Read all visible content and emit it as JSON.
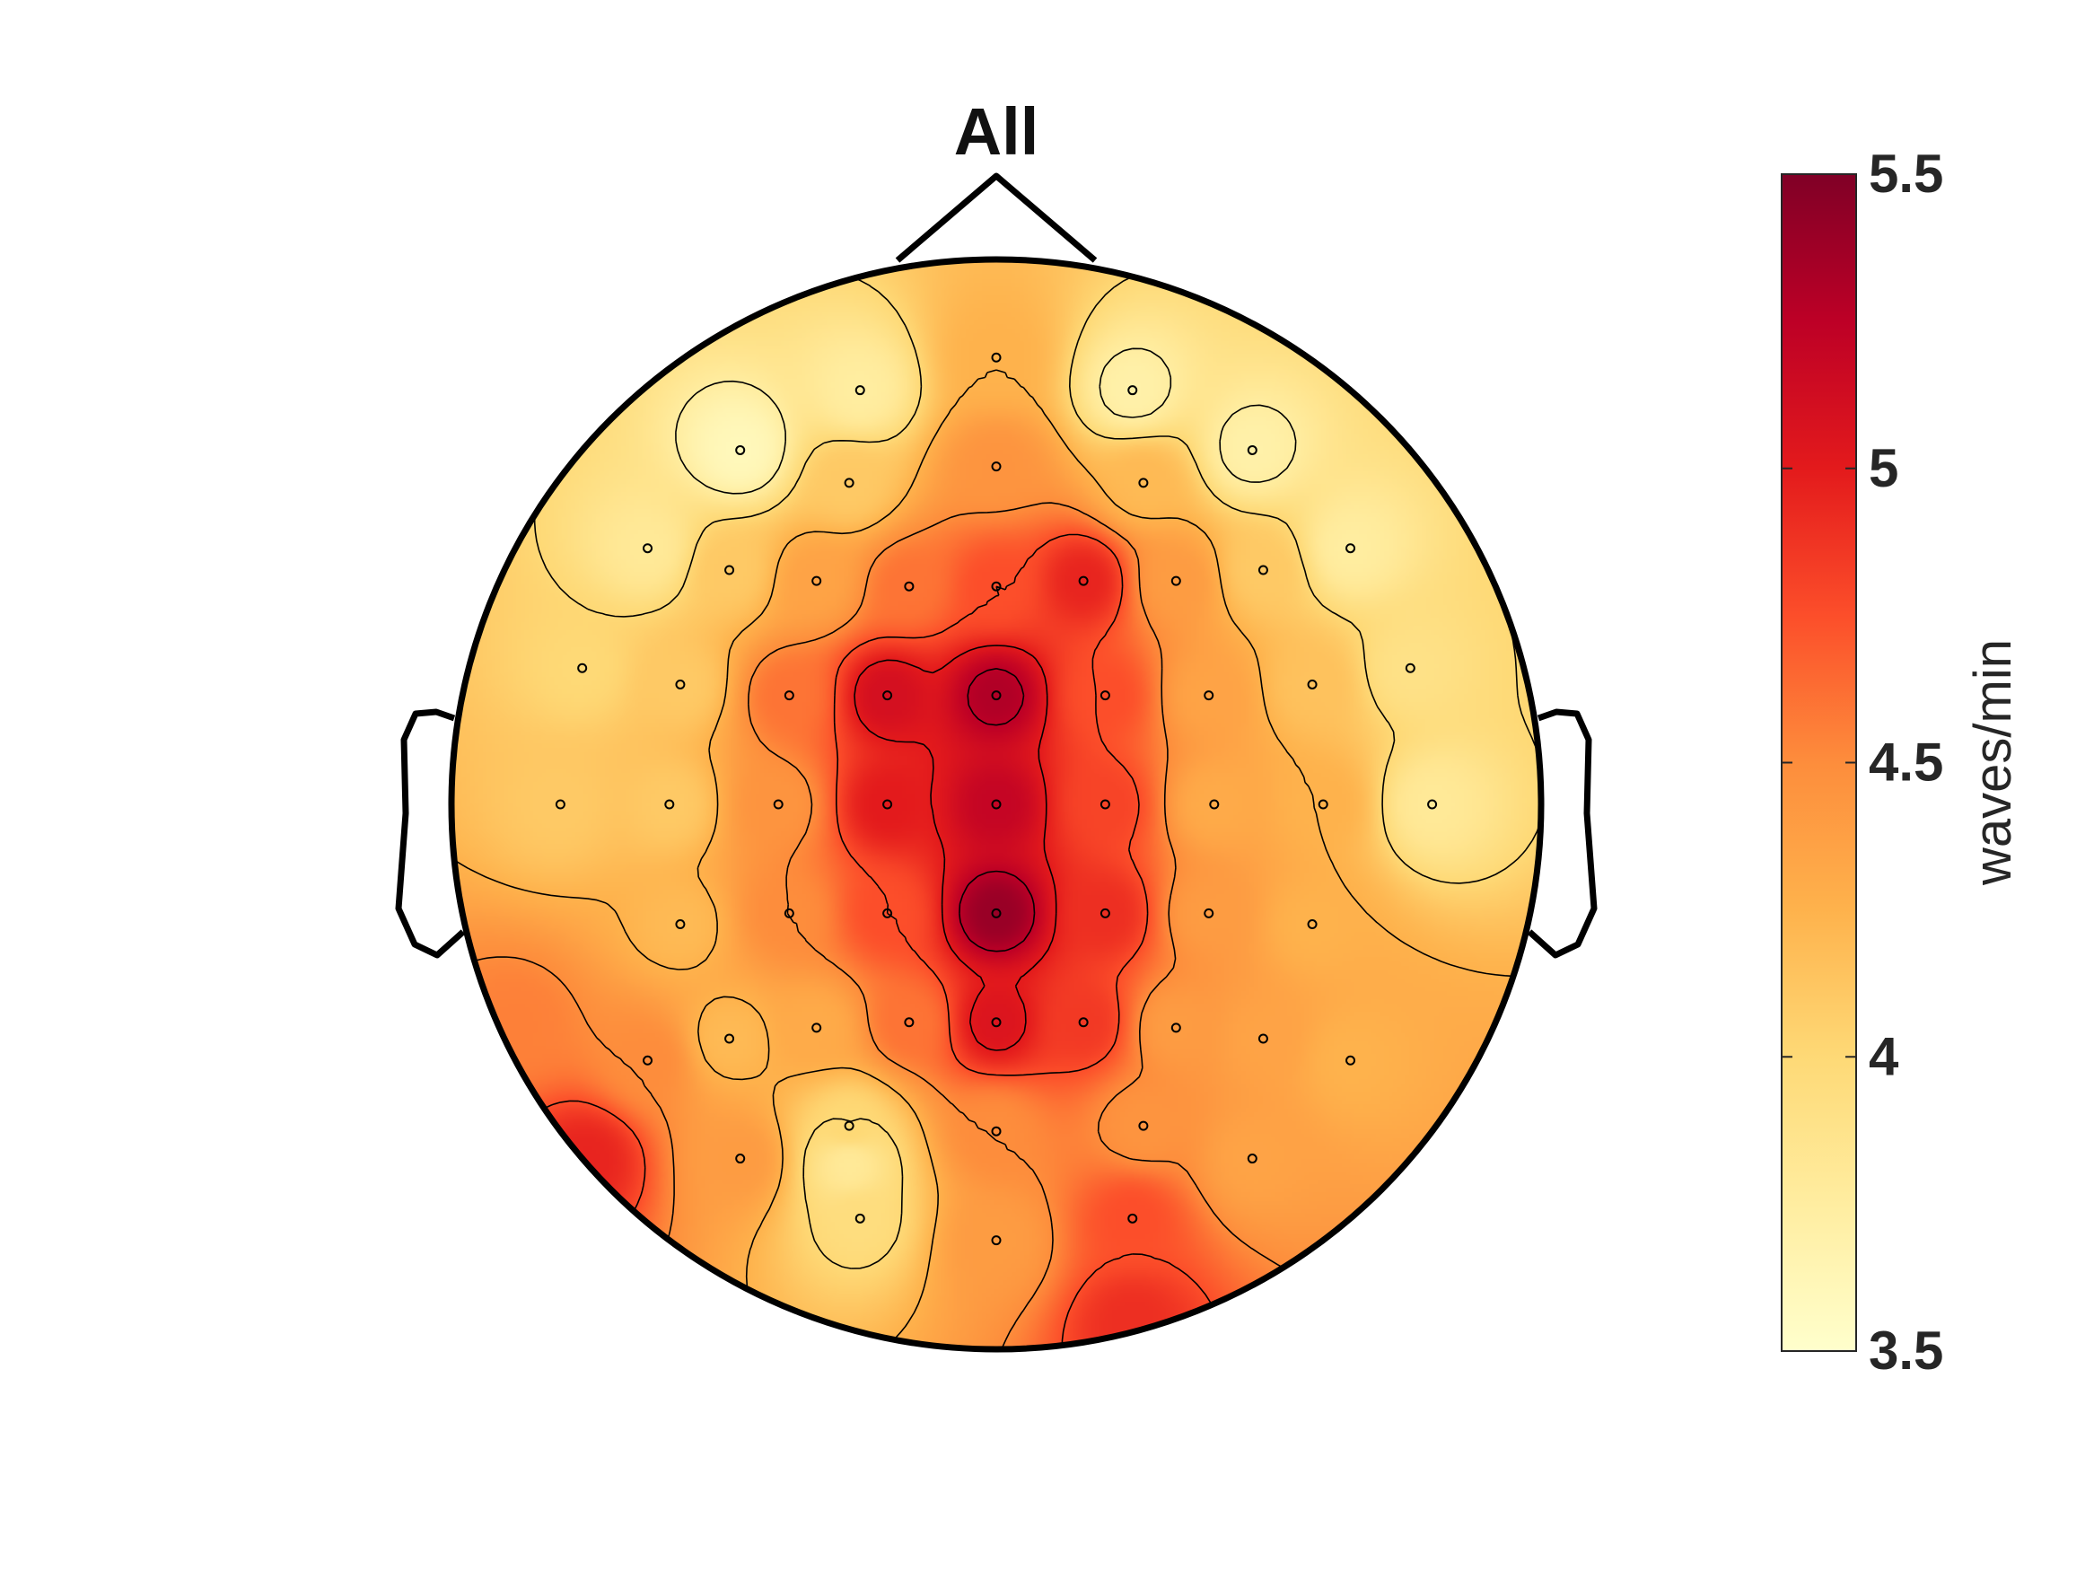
{
  "chart_data": {
    "type": "heatmap",
    "subtype": "eeg-topoplot",
    "title": "All",
    "colorbar": {
      "label": "waves/min",
      "range": [
        3.5,
        5.5
      ],
      "ticks": [
        5.5,
        5,
        4.5,
        4,
        3.5
      ],
      "tick_labels": [
        "5.5",
        "5",
        "4.5",
        "4",
        "3.5"
      ],
      "colormap": [
        "#ffffcc",
        "#ffeda0",
        "#fed976",
        "#feb24c",
        "#fd8d3c",
        "#fc4e2a",
        "#e31a1c",
        "#bd0026",
        "#800026"
      ]
    },
    "contours": true,
    "electrodes": [
      {
        "x": 0.0,
        "y": 0.82,
        "v": 4.25
      },
      {
        "x": -0.25,
        "y": 0.76,
        "v": 3.75
      },
      {
        "x": 0.25,
        "y": 0.76,
        "v": 3.7
      },
      {
        "x": -0.47,
        "y": 0.65,
        "v": 3.6
      },
      {
        "x": 0.47,
        "y": 0.65,
        "v": 3.7
      },
      {
        "x": -0.27,
        "y": 0.59,
        "v": 4.1
      },
      {
        "x": 0.0,
        "y": 0.62,
        "v": 4.45
      },
      {
        "x": 0.27,
        "y": 0.59,
        "v": 4.2
      },
      {
        "x": -0.64,
        "y": 0.47,
        "v": 3.8
      },
      {
        "x": -0.49,
        "y": 0.43,
        "v": 4.1
      },
      {
        "x": -0.33,
        "y": 0.41,
        "v": 4.35
      },
      {
        "x": -0.16,
        "y": 0.4,
        "v": 4.6
      },
      {
        "x": 0.0,
        "y": 0.4,
        "v": 4.75
      },
      {
        "x": 0.16,
        "y": 0.41,
        "v": 4.95
      },
      {
        "x": 0.33,
        "y": 0.41,
        "v": 4.4
      },
      {
        "x": 0.49,
        "y": 0.43,
        "v": 4.1
      },
      {
        "x": 0.65,
        "y": 0.47,
        "v": 3.75
      },
      {
        "x": -0.76,
        "y": 0.25,
        "v": 4.0
      },
      {
        "x": -0.58,
        "y": 0.22,
        "v": 4.1
      },
      {
        "x": -0.38,
        "y": 0.2,
        "v": 4.6
      },
      {
        "x": -0.2,
        "y": 0.2,
        "v": 5.1
      },
      {
        "x": 0.0,
        "y": 0.2,
        "v": 5.3
      },
      {
        "x": 0.2,
        "y": 0.2,
        "v": 4.75
      },
      {
        "x": 0.39,
        "y": 0.2,
        "v": 4.35
      },
      {
        "x": 0.58,
        "y": 0.22,
        "v": 4.15
      },
      {
        "x": 0.76,
        "y": 0.25,
        "v": 3.9
      },
      {
        "x": -0.8,
        "y": 0.0,
        "v": 4.1
      },
      {
        "x": -0.6,
        "y": 0.0,
        "v": 4.1
      },
      {
        "x": -0.4,
        "y": 0.0,
        "v": 4.45
      },
      {
        "x": -0.2,
        "y": 0.0,
        "v": 5.0
      },
      {
        "x": 0.0,
        "y": 0.0,
        "v": 5.2
      },
      {
        "x": 0.2,
        "y": 0.0,
        "v": 4.8
      },
      {
        "x": 0.4,
        "y": 0.0,
        "v": 4.3
      },
      {
        "x": 0.6,
        "y": 0.0,
        "v": 4.25
      },
      {
        "x": 0.8,
        "y": 0.0,
        "v": 3.8
      },
      {
        "x": -0.58,
        "y": -0.22,
        "v": 4.2
      },
      {
        "x": -0.38,
        "y": -0.2,
        "v": 4.5
      },
      {
        "x": -0.2,
        "y": -0.2,
        "v": 4.75
      },
      {
        "x": 0.0,
        "y": -0.2,
        "v": 5.4
      },
      {
        "x": 0.2,
        "y": -0.2,
        "v": 4.9
      },
      {
        "x": 0.39,
        "y": -0.2,
        "v": 4.4
      },
      {
        "x": 0.58,
        "y": -0.22,
        "v": 4.25
      },
      {
        "x": -0.49,
        "y": -0.43,
        "v": 4.2
      },
      {
        "x": -0.33,
        "y": -0.41,
        "v": 4.3
      },
      {
        "x": -0.16,
        "y": -0.4,
        "v": 4.6
      },
      {
        "x": 0.0,
        "y": -0.4,
        "v": 5.05
      },
      {
        "x": 0.16,
        "y": -0.4,
        "v": 4.85
      },
      {
        "x": 0.33,
        "y": -0.41,
        "v": 4.4
      },
      {
        "x": 0.49,
        "y": -0.43,
        "v": 4.35
      },
      {
        "x": -0.64,
        "y": -0.47,
        "v": 4.5
      },
      {
        "x": 0.65,
        "y": -0.47,
        "v": 4.25
      },
      {
        "x": -0.47,
        "y": -0.65,
        "v": 4.4
      },
      {
        "x": -0.27,
        "y": -0.59,
        "v": 4.0
      },
      {
        "x": 0.0,
        "y": -0.6,
        "v": 4.5
      },
      {
        "x": 0.27,
        "y": -0.59,
        "v": 4.45
      },
      {
        "x": 0.47,
        "y": -0.65,
        "v": 4.35
      },
      {
        "x": -0.25,
        "y": -0.76,
        "v": 3.95
      },
      {
        "x": 0.0,
        "y": -0.8,
        "v": 4.4
      },
      {
        "x": 0.25,
        "y": -0.76,
        "v": 4.75
      }
    ],
    "extra_points": [
      {
        "x": -0.75,
        "y": -0.65,
        "v": 4.95
      },
      {
        "x": -0.88,
        "y": -0.4,
        "v": 4.55
      },
      {
        "x": 0.25,
        "y": -0.95,
        "v": 4.9
      },
      {
        "x": -0.27,
        "y": -0.66,
        "v": 3.8
      }
    ]
  }
}
